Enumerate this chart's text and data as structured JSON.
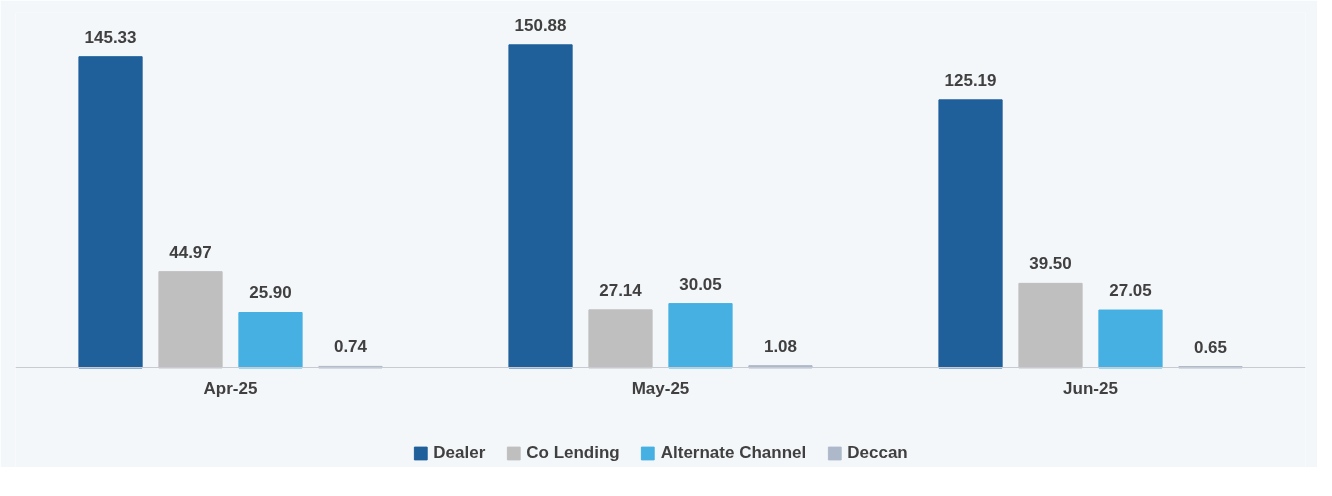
{
  "chart_data": {
    "type": "bar",
    "categories": [
      "Apr-25",
      "May-25",
      "Jun-25"
    ],
    "series": [
      {
        "name": "Dealer",
        "color": "#1f5f9a",
        "values": [
          145.33,
          150.88,
          125.19
        ],
        "value_labels": [
          "145.33",
          "150.88",
          "125.19"
        ]
      },
      {
        "name": "Co Lending",
        "color": "#bfbfbf",
        "values": [
          44.97,
          27.14,
          39.5
        ],
        "value_labels": [
          "44.97",
          "27.14",
          "39.50"
        ]
      },
      {
        "name": "Alternate Channel",
        "color": "#45b0e1",
        "values": [
          25.9,
          30.05,
          27.05
        ],
        "value_labels": [
          "25.90",
          "30.05",
          "27.05"
        ]
      },
      {
        "name": "Deccan",
        "color": "#adb9ca",
        "values": [
          0.74,
          1.08,
          0.65
        ],
        "value_labels": [
          "0.74",
          "1.08",
          "0.65"
        ]
      }
    ],
    "legend": "bottom",
    "grid": false
  }
}
